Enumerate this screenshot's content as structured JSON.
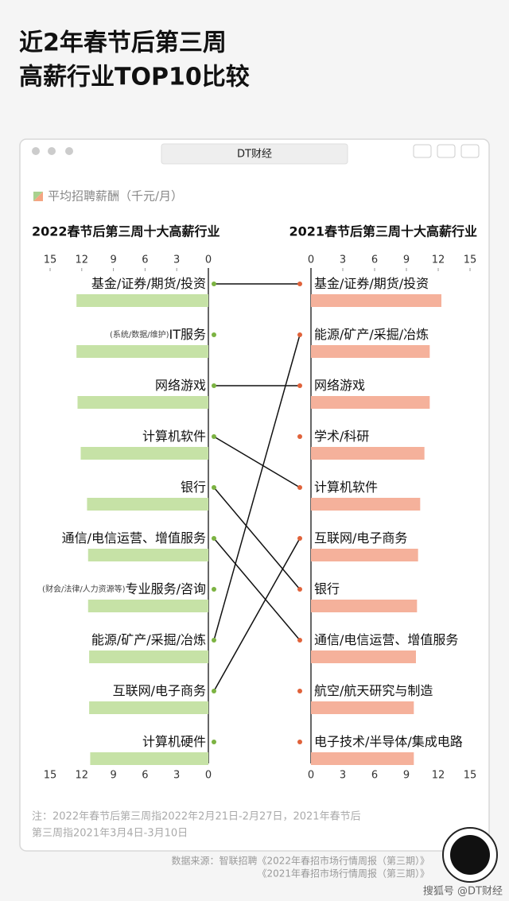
{
  "title": [
    "近2年春节后第三周",
    "高薪行业TOP10比较"
  ],
  "window_title": "DT财经",
  "series_name": "平均招聘薪酬（千元/月）",
  "chart_data": [
    {
      "type": "bar",
      "title": "2022春节后第三周十大高薪行业",
      "categories": [
        "基金/证券/期货/投资",
        "IT服务",
        "网络游戏",
        "计算机软件",
        "银行",
        "通信/电信运营、增值服务",
        "专业服务/咨询",
        "能源/矿产/采掘/冶炼",
        "互联网/电子商务",
        "计算机硬件"
      ],
      "notes": [
        null,
        "(系统/数据/维护)",
        null,
        null,
        null,
        null,
        "(财会/法律/人力资源等)",
        null,
        null,
        null
      ],
      "values": [
        12.5,
        12.5,
        12.4,
        12.1,
        11.5,
        11.4,
        11.4,
        11.3,
        11.3,
        11.2
      ],
      "color": "#c6e2a6",
      "dot_color": "#7cb342",
      "xlim": [
        0,
        15
      ],
      "x_reversed": true,
      "xticks": [
        0,
        3,
        6,
        9,
        12,
        15
      ]
    },
    {
      "type": "bar",
      "title": "2021春节后第三周十大高薪行业",
      "categories": [
        "基金/证券/期货/投资",
        "能源/矿产/采掘/冶炼",
        "网络游戏",
        "学术/科研",
        "计算机软件",
        "互联网/电子商务",
        "银行",
        "通信/电信运营、增值服务",
        "航空/航天研究与制造",
        "电子技术/半导体/集成电路"
      ],
      "values": [
        12.3,
        11.2,
        11.2,
        10.7,
        10.3,
        10.1,
        10.0,
        9.9,
        9.7,
        9.7
      ],
      "color": "#f5b19b",
      "dot_color": "#e0623a",
      "xlim": [
        0,
        15
      ],
      "x_reversed": false,
      "xticks": [
        0,
        3,
        6,
        9,
        12,
        15
      ]
    }
  ],
  "note": [
    "注：2022年春节后第三周指2022年2月21日-2月27日，2021年春节后",
    "第三周指2021年3月4日-3月10日"
  ],
  "source": [
    "数据来源：智联招聘《2022年春招市场行情周报（第三期）》",
    "《2021年春招市场行情周报（第三期）》"
  ],
  "credit": "搜狐号 @DT财经"
}
